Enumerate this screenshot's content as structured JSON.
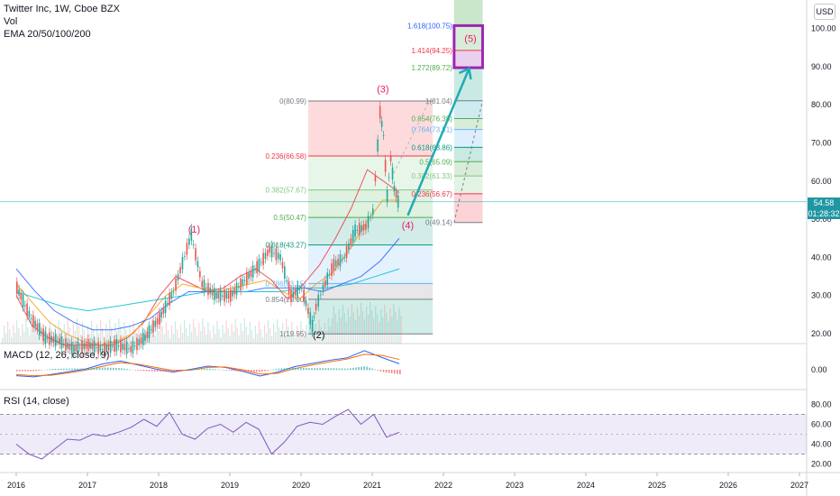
{
  "chart_data": [
    {
      "type": "line",
      "panel": "price",
      "title": "Twitter Inc, 1W, Cboe BZX",
      "volume_label": "Vol",
      "indicator_label": "EMA 20/50/100/200",
      "currency": "USD",
      "last_price": "54.58",
      "countdown": "01:28:32",
      "ylim": [
        17,
        112
      ],
      "y_ticks": [
        "100.00",
        "90.00",
        "80.00",
        "70.00",
        "60.00",
        "50.00",
        "40.00",
        "30.00",
        "20.00"
      ],
      "x_ticks": [
        "2016",
        "2017",
        "2018",
        "2019",
        "2020",
        "2021",
        "2022",
        "2023",
        "2024",
        "2025",
        "2026",
        "2027"
      ],
      "price_series": {
        "x": [
          2016.0,
          2016.2,
          2016.4,
          2016.6,
          2016.8,
          2017.0,
          2017.2,
          2017.4,
          2017.6,
          2017.8,
          2018.0,
          2018.2,
          2018.45,
          2018.6,
          2018.8,
          2019.0,
          2019.2,
          2019.4,
          2019.55,
          2019.7,
          2019.85,
          2020.0,
          2020.15,
          2020.2,
          2020.3,
          2020.45,
          2020.6,
          2020.75,
          2020.9,
          2021.0,
          2021.1,
          2021.15,
          2021.2,
          2021.25,
          2021.3,
          2021.38
        ],
        "values": [
          32,
          24,
          19,
          18,
          16,
          17,
          16,
          17,
          16,
          19,
          24,
          31,
          46,
          33,
          30,
          30,
          34,
          38,
          42,
          40,
          30,
          32,
          22,
          27,
          32,
          38,
          40,
          47,
          48,
          52,
          78,
          72,
          56,
          66,
          58,
          53
        ]
      },
      "ema_series": [
        {
          "color": "#f23645",
          "values": [
            30,
            22,
            19,
            17,
            17,
            17,
            17,
            19,
            23,
            30,
            35,
            33,
            31,
            32,
            35,
            37,
            34,
            29,
            33,
            38,
            45,
            53,
            63,
            60,
            57
          ]
        },
        {
          "color": "#ff9800",
          "values": [
            33,
            28,
            23,
            20,
            18,
            17,
            18,
            20,
            25,
            30,
            33,
            32,
            31,
            32,
            33,
            34,
            31,
            29,
            33,
            36,
            42,
            49,
            55,
            55
          ]
        },
        {
          "color": "#2962ff",
          "values": [
            37,
            31,
            26,
            23,
            21,
            21,
            22,
            24,
            28,
            31,
            31,
            31,
            31,
            32,
            32,
            32,
            31,
            33,
            35,
            39,
            45
          ]
        },
        {
          "color": "#00bcd4",
          "values": [
            31,
            29,
            27,
            26,
            27,
            28,
            29,
            30,
            31,
            31,
            31,
            31,
            32,
            32,
            33,
            35,
            37
          ]
        }
      ],
      "waves": [
        "(1)",
        "(2)",
        "(3)",
        "(4)",
        "(5)"
      ],
      "fib_retracement": [
        {
          "label": "0(80.99)",
          "value": 80.99,
          "color": "#787b86"
        },
        {
          "label": "0.236(66.58)",
          "value": 66.58,
          "color": "#f23645"
        },
        {
          "label": "0.382(57.67)",
          "value": 57.67,
          "color": "#81c784"
        },
        {
          "label": "0.5(50.47)",
          "value": 50.47,
          "color": "#4caf50"
        },
        {
          "label": "0.618(43.27)",
          "value": 43.27,
          "color": "#089981"
        },
        {
          "label": "0.786(33.15)",
          "value": 33.15,
          "color": "#64b5f6"
        },
        {
          "label": "0.854(29.00)",
          "value": 29.0,
          "color": "#787b86"
        },
        {
          "label": "1(19.95)",
          "value": 19.95,
          "color": "#787b86"
        }
      ],
      "fib_extension": [
        {
          "label": "1.618(100.75)",
          "value": 100.75,
          "color": "#2962ff"
        },
        {
          "label": "1.414(94.25)",
          "value": 94.25,
          "color": "#f23645"
        },
        {
          "label": "1.272(89.72)",
          "value": 89.72,
          "color": "#4caf50"
        },
        {
          "label": "1(81.04)",
          "value": 81.04,
          "color": "#787b86"
        },
        {
          "label": "0.854(76.38)",
          "value": 76.38,
          "color": "#4caf50"
        },
        {
          "label": "0.764(73.51)",
          "value": 73.51,
          "color": "#64b5f6"
        },
        {
          "label": "0.618(68.86)",
          "value": 68.86,
          "color": "#089981"
        },
        {
          "label": "0.5(65.09)",
          "value": 65.09,
          "color": "#4caf50"
        },
        {
          "label": "0.382(61.33)",
          "value": 61.33,
          "color": "#81c784"
        },
        {
          "label": "0.236(56.67)",
          "value": 56.67,
          "color": "#f23645"
        },
        {
          "label": "0(49.14)",
          "value": 49.14,
          "color": "#787b86"
        }
      ],
      "colors": {
        "up": "#26a69a",
        "down": "#ef5350",
        "arrow": "#22aab5",
        "wave": "#e91e63",
        "target_box": "#9c27b0"
      }
    },
    {
      "type": "line",
      "panel": "macd",
      "title": "MACD (12, 26, close, 9)",
      "y_ticks": [
        "0.00"
      ],
      "series": [
        {
          "color": "#2962ff",
          "values": [
            -1.5,
            -1.8,
            -1.2,
            -0.5,
            0.2,
            1.5,
            2.2,
            1.2,
            0.2,
            -0.6,
            0.1,
            0.9,
            0.6,
            -0.4,
            -1.6,
            -0.6,
            0.8,
            1.6,
            2.4,
            3.0,
            4.8,
            3.1,
            1.5
          ]
        },
        {
          "color": "#ff6d00",
          "values": [
            -1.2,
            -1.5,
            -1.4,
            -0.8,
            -0.1,
            0.9,
            1.8,
            1.4,
            0.6,
            -0.2,
            -0.1,
            0.6,
            0.7,
            0.0,
            -1.1,
            -0.9,
            0.3,
            1.2,
            2.0,
            2.7,
            3.9,
            3.6,
            2.6
          ]
        }
      ]
    },
    {
      "type": "line",
      "panel": "rsi",
      "title": "RSI (14, close)",
      "y_ticks": [
        "80.00",
        "60.00",
        "40.00",
        "20.00"
      ],
      "ylim": [
        15,
        85
      ],
      "band": [
        30,
        70
      ],
      "series": [
        {
          "color": "#7e57c2",
          "values": [
            40,
            30,
            25,
            35,
            45,
            44,
            50,
            48,
            52,
            57,
            65,
            58,
            72,
            50,
            45,
            56,
            60,
            52,
            62,
            55,
            30,
            42,
            58,
            62,
            60,
            68,
            75,
            60,
            70,
            47,
            52
          ]
        }
      ]
    }
  ]
}
